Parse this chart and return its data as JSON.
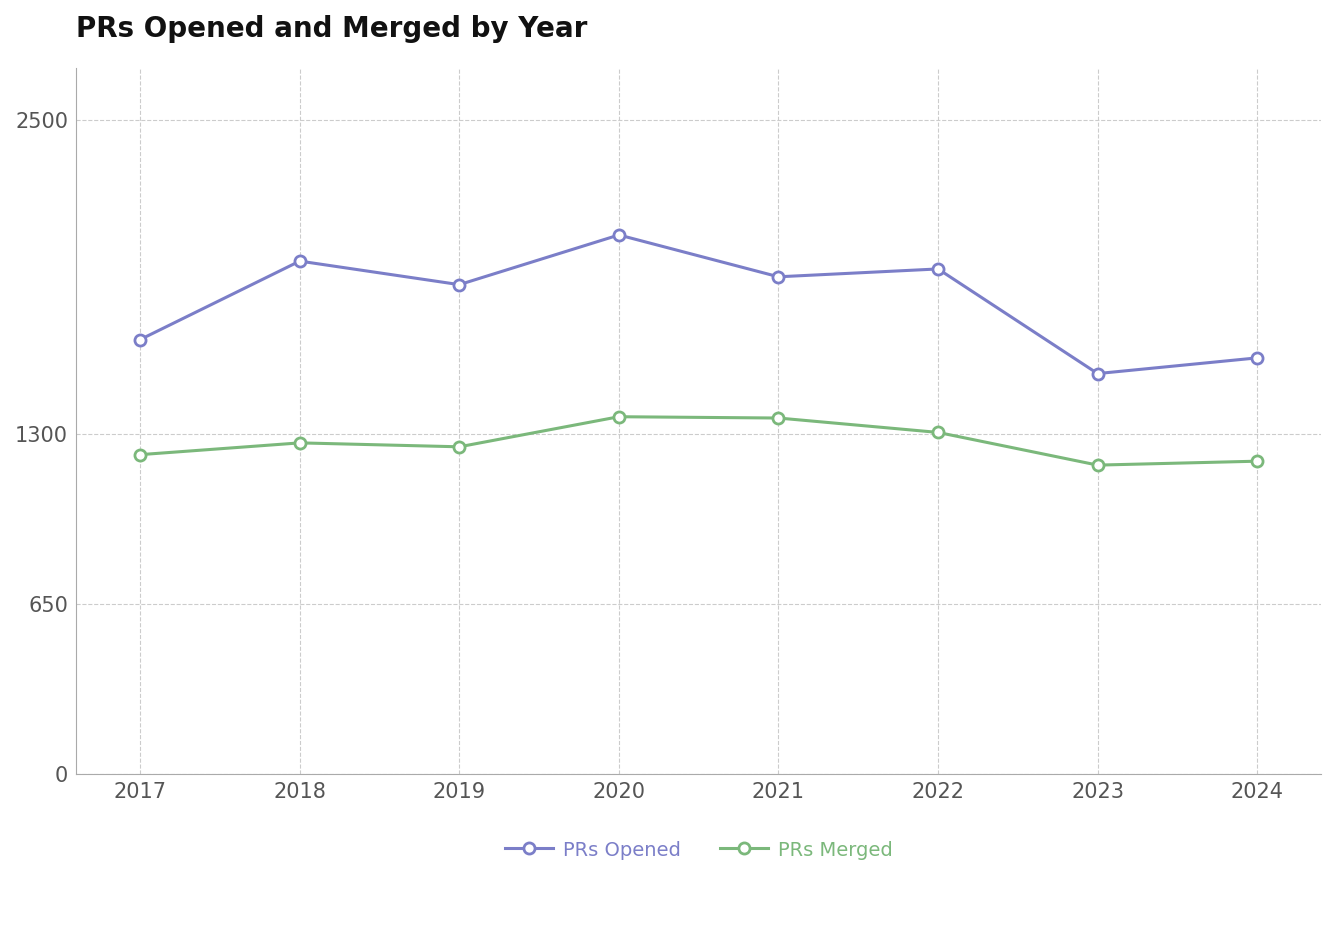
{
  "title": "PRs Opened and Merged by Year",
  "years": [
    2017,
    2018,
    2019,
    2020,
    2021,
    2022,
    2023,
    2024
  ],
  "prs_opened": [
    1660,
    1960,
    1870,
    2060,
    1900,
    1930,
    1530,
    1590
  ],
  "prs_merged": [
    1220,
    1265,
    1250,
    1365,
    1360,
    1305,
    1180,
    1195
  ],
  "opened_color": "#7b7ec8",
  "merged_color": "#7bb87b",
  "background_color": "#ffffff",
  "grid_color": "#cccccc",
  "yticks": [
    0,
    650,
    1300,
    2500
  ],
  "ylim": [
    0,
    2700
  ],
  "xlim": [
    2016.6,
    2024.4
  ],
  "title_fontsize": 20,
  "tick_fontsize": 15,
  "legend_fontsize": 14,
  "line_width": 2.2,
  "marker_size": 8
}
